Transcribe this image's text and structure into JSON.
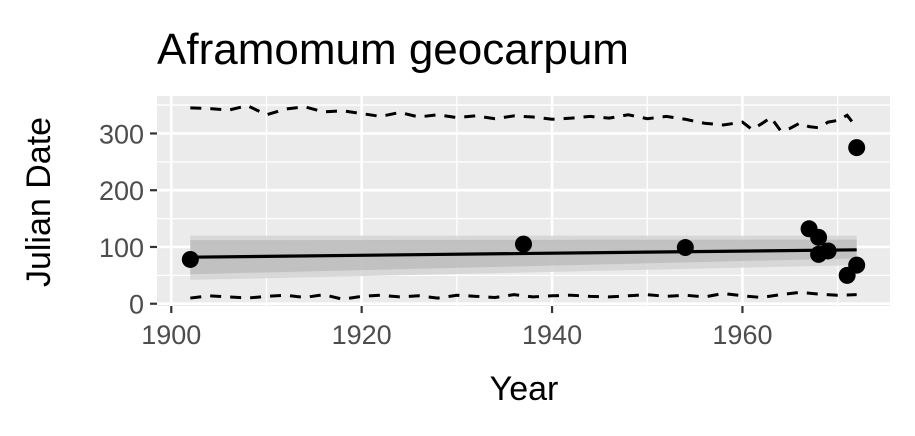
{
  "chart_data": {
    "type": "scatter",
    "title": "Aframomum geocarpum",
    "xlabel": "Year",
    "ylabel": "Julian Date",
    "xlim": [
      1898.5,
      1975.5
    ],
    "ylim": [
      -4,
      366
    ],
    "x_ticks": [
      1900,
      1920,
      1940,
      1960
    ],
    "x_tick_labels": [
      "1900",
      "1920",
      "1940",
      "1960"
    ],
    "y_ticks": [
      0,
      100,
      200,
      300
    ],
    "y_tick_labels": [
      "0",
      "100",
      "200",
      "300"
    ],
    "x_minor_ticks": [
      1910,
      1930,
      1950,
      1970
    ],
    "y_minor_ticks": [
      50,
      150,
      250,
      350
    ],
    "grid": true,
    "background": "#ebebeb",
    "points": [
      {
        "x": 1902,
        "y": 78
      },
      {
        "x": 1937,
        "y": 105
      },
      {
        "x": 1954,
        "y": 99
      },
      {
        "x": 1967,
        "y": 132
      },
      {
        "x": 1968,
        "y": 117
      },
      {
        "x": 1968,
        "y": 87
      },
      {
        "x": 1969,
        "y": 93
      },
      {
        "x": 1971,
        "y": 50
      },
      {
        "x": 1972,
        "y": 68
      },
      {
        "x": 1972,
        "y": 275
      }
    ],
    "trend_line": {
      "x": [
        1902,
        1972
      ],
      "y": [
        82,
        95
      ]
    },
    "ribbons": [
      {
        "x": [
          1902,
          1972
        ],
        "upper": [
          120,
          120
        ],
        "lower": [
          42,
          68
        ],
        "color": "#d4d4d4"
      },
      {
        "x": [
          1902,
          1972
        ],
        "upper": [
          112,
          113
        ],
        "lower": [
          52,
          80
        ],
        "color": "#bdbdbd"
      }
    ],
    "upper_dashed": {
      "x": [
        1902,
        1904,
        1906,
        1908,
        1910,
        1912,
        1914,
        1916,
        1918,
        1920,
        1922,
        1924,
        1926,
        1928,
        1930,
        1932,
        1934,
        1936,
        1938,
        1940,
        1942,
        1944,
        1946,
        1948,
        1950,
        1952,
        1954,
        1956,
        1958,
        1960,
        1961,
        1962,
        1963,
        1964,
        1965,
        1966,
        1967,
        1968,
        1969,
        1970,
        1971,
        1972
      ],
      "y": [
        345,
        344,
        341,
        349,
        333,
        343,
        347,
        338,
        340,
        335,
        330,
        337,
        329,
        333,
        328,
        331,
        326,
        331,
        329,
        325,
        327,
        330,
        327,
        333,
        326,
        330,
        325,
        318,
        315,
        320,
        307,
        317,
        328,
        305,
        309,
        318,
        312,
        310,
        320,
        323,
        332,
        310
      ]
    },
    "lower_dashed": {
      "x": [
        1902,
        1904,
        1906,
        1908,
        1910,
        1912,
        1914,
        1916,
        1918,
        1920,
        1922,
        1924,
        1926,
        1928,
        1930,
        1932,
        1934,
        1936,
        1938,
        1940,
        1942,
        1944,
        1946,
        1948,
        1950,
        1952,
        1954,
        1956,
        1958,
        1960,
        1962,
        1964,
        1966,
        1968,
        1970,
        1972
      ],
      "y": [
        10,
        14,
        12,
        10,
        13,
        15,
        11,
        16,
        8,
        13,
        15,
        12,
        14,
        10,
        15,
        13,
        11,
        16,
        12,
        14,
        15,
        13,
        12,
        14,
        16,
        13,
        15,
        12,
        18,
        14,
        11,
        16,
        20,
        17,
        15,
        16
      ]
    }
  }
}
